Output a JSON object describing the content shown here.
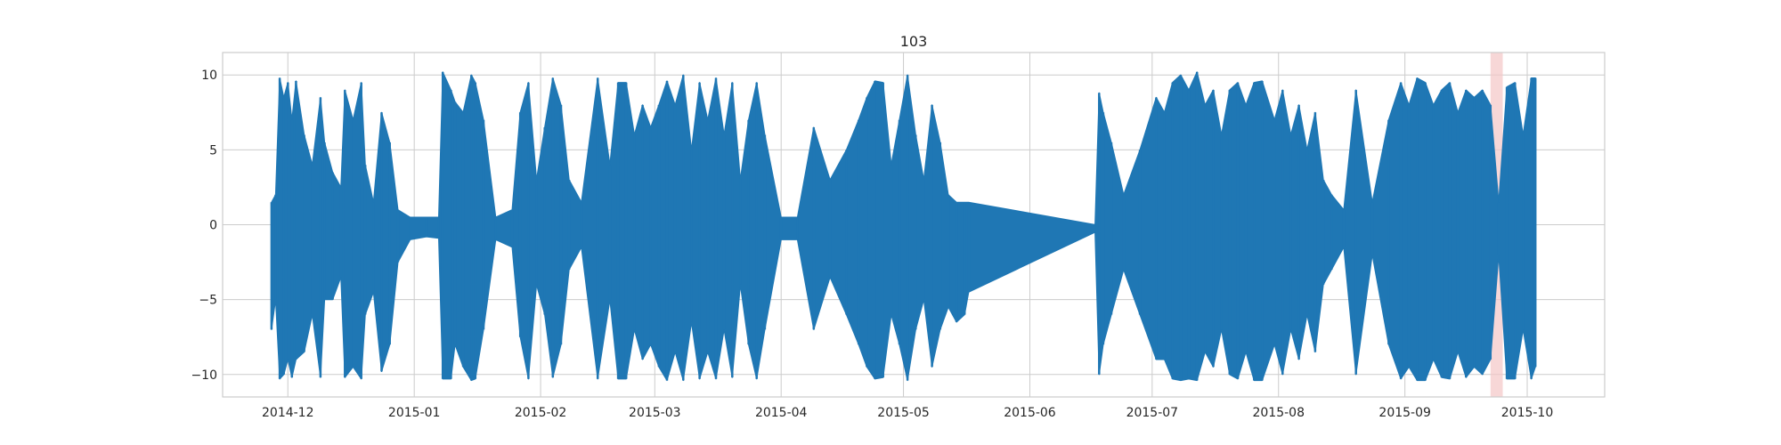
{
  "chart_data": {
    "type": "line",
    "title": "103",
    "xlabel": "",
    "ylabel": "",
    "grid": true,
    "legend": "none",
    "xlim": [
      "2014-11-15",
      "2015-10-20"
    ],
    "ylim": [
      -11.5,
      11.5
    ],
    "x_ticks": [
      {
        "date": "2014-12-01",
        "label": "2014-12"
      },
      {
        "date": "2015-01-01",
        "label": "2015-01"
      },
      {
        "date": "2015-02-01",
        "label": "2015-02"
      },
      {
        "date": "2015-03-01",
        "label": "2015-03"
      },
      {
        "date": "2015-04-01",
        "label": "2015-04"
      },
      {
        "date": "2015-05-01",
        "label": "2015-05"
      },
      {
        "date": "2015-06-01",
        "label": "2015-06"
      },
      {
        "date": "2015-07-01",
        "label": "2015-07"
      },
      {
        "date": "2015-08-01",
        "label": "2015-08"
      },
      {
        "date": "2015-09-01",
        "label": "2015-09"
      },
      {
        "date": "2015-10-01",
        "label": "2015-10"
      }
    ],
    "y_ticks": [
      {
        "value": 10,
        "label": "10"
      },
      {
        "value": 5,
        "label": "5"
      },
      {
        "value": 0,
        "label": "0"
      },
      {
        "value": -5,
        "label": "−5"
      },
      {
        "value": -10,
        "label": "−10"
      }
    ],
    "highlight_span": {
      "start": "2015-09-22",
      "end": "2015-09-25",
      "color": "#f4c6c6"
    },
    "series": [
      {
        "color": "#1f77b4",
        "x": [
          "2014-11-27",
          "2014-11-28",
          "2014-11-29",
          "2014-11-30",
          "2014-12-01",
          "2014-12-02",
          "2014-12-03",
          "2014-12-05",
          "2014-12-07",
          "2014-12-09",
          "2014-12-10",
          "2014-12-12",
          "2014-12-14",
          "2014-12-15",
          "2014-12-17",
          "2014-12-19",
          "2014-12-20",
          "2014-12-22",
          "2014-12-24",
          "2014-12-26",
          "2014-12-28",
          "2014-12-31",
          "2015-01-04",
          "2015-01-07",
          "2015-01-08",
          "2015-01-10",
          "2015-01-11",
          "2015-01-13",
          "2015-01-15",
          "2015-01-16",
          "2015-01-18",
          "2015-01-21",
          "2015-01-25",
          "2015-01-27",
          "2015-01-29",
          "2015-01-31",
          "2015-02-02",
          "2015-02-04",
          "2015-02-06",
          "2015-02-08",
          "2015-02-11",
          "2015-02-15",
          "2015-02-18",
          "2015-02-20",
          "2015-02-22",
          "2015-02-24",
          "2015-02-26",
          "2015-02-28",
          "2015-03-02",
          "2015-03-04",
          "2015-03-06",
          "2015-03-08",
          "2015-03-10",
          "2015-03-12",
          "2015-03-14",
          "2015-03-16",
          "2015-03-18",
          "2015-03-20",
          "2015-03-22",
          "2015-03-24",
          "2015-03-26",
          "2015-03-28",
          "2015-04-01",
          "2015-04-05",
          "2015-04-09",
          "2015-04-13",
          "2015-04-17",
          "2015-04-20",
          "2015-04-22",
          "2015-04-24",
          "2015-04-26",
          "2015-04-28",
          "2015-04-30",
          "2015-05-02",
          "2015-05-04",
          "2015-05-06",
          "2015-05-08",
          "2015-05-10",
          "2015-05-12",
          "2015-05-14",
          "2015-05-16",
          "2015-05-17",
          "2015-06-17",
          "2015-06-18",
          "2015-06-19",
          "2015-06-21",
          "2015-06-24",
          "2015-06-28",
          "2015-07-02",
          "2015-07-04",
          "2015-07-06",
          "2015-07-08",
          "2015-07-10",
          "2015-07-12",
          "2015-07-14",
          "2015-07-16",
          "2015-07-18",
          "2015-07-20",
          "2015-07-22",
          "2015-07-24",
          "2015-07-26",
          "2015-07-28",
          "2015-07-31",
          "2015-08-02",
          "2015-08-04",
          "2015-08-06",
          "2015-08-08",
          "2015-08-10",
          "2015-08-12",
          "2015-08-14",
          "2015-08-17",
          "2015-08-20",
          "2015-08-24",
          "2015-08-28",
          "2015-08-31",
          "2015-09-02",
          "2015-09-04",
          "2015-09-06",
          "2015-09-08",
          "2015-09-10",
          "2015-09-12",
          "2015-09-14",
          "2015-09-16",
          "2015-09-18",
          "2015-09-20",
          "2015-09-22",
          "2015-09-24",
          "2015-09-26",
          "2015-09-28",
          "2015-09-30",
          "2015-10-02",
          "2015-10-03"
        ],
        "y_max": [
          1.5,
          2.0,
          9.8,
          8.5,
          9.5,
          7.0,
          9.6,
          6.0,
          4.0,
          8.5,
          5.5,
          3.5,
          2.5,
          9.0,
          7.0,
          9.5,
          4.0,
          1.5,
          7.5,
          5.5,
          1.0,
          0.5,
          0.5,
          0.5,
          10.2,
          9.0,
          8.2,
          7.5,
          10.0,
          9.5,
          7.0,
          0.5,
          1.0,
          7.5,
          9.5,
          3.0,
          6.5,
          9.8,
          8.0,
          3.0,
          1.5,
          9.8,
          4.0,
          9.5,
          9.5,
          6.0,
          8.0,
          6.5,
          8.0,
          9.6,
          8.0,
          10.0,
          5.0,
          9.5,
          7.0,
          9.8,
          6.0,
          9.5,
          3.0,
          7.0,
          9.5,
          6.0,
          0.5,
          0.5,
          6.5,
          3.0,
          5.0,
          7.0,
          8.5,
          9.6,
          9.5,
          4.0,
          7.0,
          10.0,
          6.0,
          3.0,
          8.0,
          5.5,
          2.0,
          1.5,
          1.5,
          1.5,
          0.0,
          8.8,
          7.5,
          5.5,
          2.0,
          5.0,
          8.5,
          7.5,
          9.5,
          10.0,
          9.0,
          10.2,
          8.0,
          9.0,
          6.0,
          9.0,
          9.5,
          8.0,
          9.5,
          9.6,
          7.0,
          9.0,
          6.0,
          8.0,
          5.0,
          7.5,
          3.0,
          2.0,
          1.0,
          9.0,
          1.5,
          7.0,
          9.5,
          8.0,
          9.8,
          9.5,
          8.0,
          9.0,
          9.5,
          7.5,
          9.0,
          8.5,
          9.0,
          8.0,
          1.5,
          9.2,
          9.5,
          6.0,
          9.8,
          9.8
        ],
        "y_min": [
          -7.0,
          -5.0,
          -10.3,
          -10.0,
          -9.0,
          -10.2,
          -9.0,
          -8.5,
          -6.0,
          -10.2,
          -5.0,
          -5.0,
          -3.5,
          -10.2,
          -9.5,
          -10.3,
          -6.0,
          -4.5,
          -9.8,
          -8.0,
          -2.5,
          -1.0,
          -0.8,
          -0.9,
          -10.3,
          -10.3,
          -8.0,
          -9.5,
          -10.4,
          -10.3,
          -7.0,
          -1.0,
          -1.5,
          -7.5,
          -10.3,
          -4.0,
          -6.0,
          -10.2,
          -8.0,
          -3.0,
          -1.5,
          -10.3,
          -5.0,
          -10.3,
          -10.3,
          -7.0,
          -9.0,
          -8.0,
          -9.5,
          -10.4,
          -8.5,
          -10.4,
          -6.5,
          -10.3,
          -8.5,
          -10.3,
          -7.0,
          -10.2,
          -4.0,
          -8.0,
          -10.3,
          -7.0,
          -1.0,
          -1.0,
          -7.0,
          -3.5,
          -6.0,
          -8.0,
          -9.5,
          -10.3,
          -10.2,
          -6.0,
          -8.0,
          -10.4,
          -7.0,
          -5.0,
          -9.5,
          -7.0,
          -5.5,
          -6.5,
          -6.0,
          -4.5,
          -0.5,
          -10.0,
          -8.0,
          -6.0,
          -3.0,
          -6.0,
          -9.0,
          -9.0,
          -10.3,
          -10.4,
          -10.3,
          -10.4,
          -8.5,
          -9.5,
          -7.0,
          -10.0,
          -10.3,
          -8.5,
          -10.4,
          -10.4,
          -8.0,
          -10.0,
          -7.0,
          -9.0,
          -6.0,
          -8.5,
          -4.0,
          -3.0,
          -1.5,
          -10.0,
          -2.0,
          -8.0,
          -10.3,
          -9.5,
          -10.4,
          -10.4,
          -9.0,
          -10.2,
          -10.3,
          -8.5,
          -10.2,
          -9.5,
          -10.0,
          -9.0,
          -2.0,
          -10.3,
          -10.3,
          -7.0,
          -10.3,
          -9.5
        ]
      }
    ]
  }
}
